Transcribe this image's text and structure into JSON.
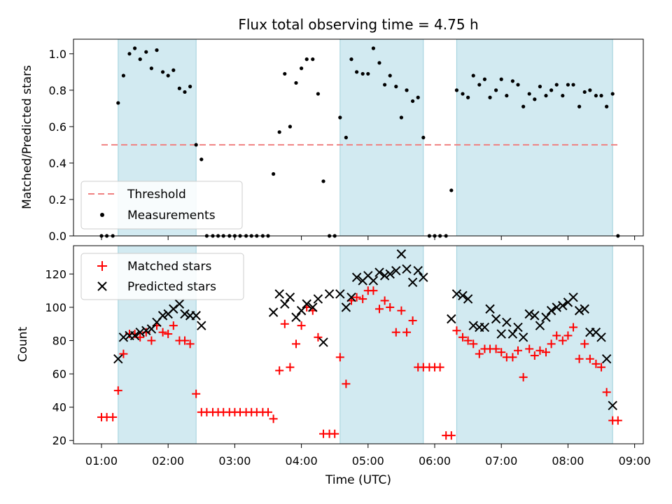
{
  "chart_data": [
    {
      "type": "scatter",
      "title": "Flux total observing time = 4.75 h",
      "xlabel": "",
      "ylabel": "Matched/Predicted stars",
      "ylim": [
        0,
        1.08
      ],
      "yticks": [
        "0.0",
        "0.2",
        "0.4",
        "0.6",
        "0.8",
        "1.0"
      ],
      "xlim": [
        0.58,
        9.13
      ],
      "legend_position": "lower-left",
      "threshold": {
        "name": "Threshold",
        "value": 0.5,
        "x_start": 1.0,
        "x_end": 8.75,
        "color": "#f08080",
        "style": "dashed"
      },
      "shaded_intervals": [
        [
          1.25,
          2.42
        ],
        [
          4.58,
          5.83
        ],
        [
          6.33,
          8.67
        ]
      ],
      "shade_color": "#add8e6",
      "series": [
        {
          "name": "Measurements",
          "color": "#000000",
          "marker": "dot",
          "x": [
            1.0,
            1.08,
            1.17,
            1.25,
            1.33,
            1.42,
            1.5,
            1.58,
            1.67,
            1.75,
            1.83,
            1.92,
            2.0,
            2.08,
            2.17,
            2.25,
            2.33,
            2.42,
            2.5,
            2.58,
            2.67,
            2.75,
            2.83,
            2.92,
            3.0,
            3.08,
            3.17,
            3.25,
            3.33,
            3.42,
            3.5,
            3.58,
            3.67,
            3.75,
            3.83,
            3.92,
            4.0,
            4.08,
            4.17,
            4.25,
            4.33,
            4.42,
            4.5,
            4.58,
            4.67,
            4.75,
            4.83,
            4.92,
            5.0,
            5.08,
            5.17,
            5.25,
            5.33,
            5.42,
            5.5,
            5.58,
            5.67,
            5.75,
            5.83,
            5.92,
            6.0,
            6.08,
            6.17,
            6.25,
            6.33,
            6.42,
            6.5,
            6.58,
            6.67,
            6.75,
            6.83,
            6.92,
            7.0,
            7.08,
            7.17,
            7.25,
            7.33,
            7.42,
            7.5,
            7.58,
            7.67,
            7.75,
            7.83,
            7.92,
            8.0,
            8.08,
            8.17,
            8.25,
            8.33,
            8.42,
            8.5,
            8.58,
            8.67,
            8.75
          ],
          "y": [
            0.0,
            0.0,
            0.0,
            0.73,
            0.88,
            1.0,
            1.03,
            0.97,
            1.01,
            0.92,
            1.02,
            0.9,
            0.88,
            0.91,
            0.81,
            0.79,
            0.82,
            0.5,
            0.42,
            0.0,
            0.0,
            0.0,
            0.0,
            0.0,
            0.0,
            0.0,
            0.0,
            0.0,
            0.0,
            0.0,
            0.0,
            0.34,
            0.57,
            0.89,
            0.6,
            0.84,
            0.92,
            0.97,
            0.97,
            0.78,
            0.3,
            0.0,
            0.0,
            0.65,
            0.54,
            0.97,
            0.9,
            0.89,
            0.89,
            1.03,
            0.95,
            0.83,
            0.88,
            0.82,
            0.65,
            0.8,
            0.74,
            0.76,
            0.54,
            0.0,
            0.0,
            0.0,
            0.0,
            0.25,
            0.8,
            0.78,
            0.76,
            0.88,
            0.83,
            0.86,
            0.76,
            0.8,
            0.86,
            0.77,
            0.85,
            0.83,
            0.71,
            0.78,
            0.75,
            0.82,
            0.77,
            0.8,
            0.83,
            0.77,
            0.83,
            0.83,
            0.71,
            0.79,
            0.8,
            0.77,
            0.77,
            0.71,
            0.78,
            0.0
          ]
        }
      ]
    },
    {
      "type": "scatter",
      "title": "",
      "xlabel": "Time (UTC)",
      "ylabel": "Count",
      "ylim": [
        18,
        137
      ],
      "yticks": [
        "20",
        "40",
        "60",
        "80",
        "100",
        "120"
      ],
      "xlim": [
        0.58,
        9.13
      ],
      "xticks": [
        "01:00",
        "02:00",
        "03:00",
        "04:00",
        "05:00",
        "06:00",
        "07:00",
        "08:00",
        "09:00"
      ],
      "legend_position": "upper-left",
      "shaded_intervals": [
        [
          1.25,
          2.42
        ],
        [
          4.58,
          5.83
        ],
        [
          6.33,
          8.67
        ]
      ],
      "shade_color": "#add8e6",
      "series": [
        {
          "name": "Matched stars",
          "color": "#ff0000",
          "marker": "plus",
          "x": [
            1.0,
            1.08,
            1.17,
            1.25,
            1.33,
            1.42,
            1.5,
            1.58,
            1.67,
            1.75,
            1.83,
            1.92,
            2.0,
            2.08,
            2.17,
            2.25,
            2.33,
            2.42,
            2.5,
            2.58,
            2.67,
            2.75,
            2.83,
            2.92,
            3.0,
            3.08,
            3.17,
            3.25,
            3.33,
            3.42,
            3.5,
            3.58,
            3.67,
            3.75,
            3.83,
            3.92,
            4.0,
            4.08,
            4.17,
            4.25,
            4.33,
            4.42,
            4.5,
            4.58,
            4.67,
            4.75,
            4.83,
            4.92,
            5.0,
            5.08,
            5.17,
            5.25,
            5.33,
            5.42,
            5.5,
            5.58,
            5.67,
            5.75,
            5.83,
            5.92,
            6.0,
            6.08,
            6.17,
            6.25,
            6.33,
            6.42,
            6.5,
            6.58,
            6.67,
            6.75,
            6.83,
            6.92,
            7.0,
            7.08,
            7.17,
            7.25,
            7.33,
            7.42,
            7.5,
            7.58,
            7.67,
            7.75,
            7.83,
            7.92,
            8.0,
            8.08,
            8.17,
            8.25,
            8.33,
            8.42,
            8.5,
            8.58,
            8.67,
            8.75
          ],
          "y": [
            34,
            34,
            34,
            50,
            72,
            84,
            84,
            82,
            85,
            80,
            89,
            85,
            84,
            89,
            80,
            80,
            78,
            48,
            37,
            37,
            37,
            37,
            37,
            37,
            37,
            37,
            37,
            37,
            37,
            37,
            37,
            33,
            62,
            90,
            64,
            78,
            89,
            100,
            98,
            82,
            24,
            24,
            24,
            70,
            54,
            104,
            106,
            105,
            110,
            110,
            99,
            104,
            100,
            85,
            98,
            85,
            92,
            64,
            64,
            64,
            64,
            64,
            23,
            23,
            86,
            82,
            80,
            78,
            72,
            75,
            75,
            75,
            73,
            70,
            70,
            74,
            58,
            75,
            71,
            74,
            73,
            78,
            83,
            80,
            83,
            88,
            69,
            78,
            69,
            66,
            64,
            49,
            32,
            32
          ]
        },
        {
          "name": "Predicted stars",
          "color": "#000000",
          "marker": "x",
          "x": [
            1.25,
            1.33,
            1.42,
            1.5,
            1.58,
            1.67,
            1.75,
            1.83,
            1.92,
            2.0,
            2.08,
            2.17,
            2.25,
            2.33,
            2.42,
            2.5,
            3.58,
            3.67,
            3.75,
            3.83,
            3.92,
            4.0,
            4.08,
            4.17,
            4.25,
            4.33,
            4.42,
            4.58,
            4.67,
            4.75,
            4.83,
            4.92,
            5.0,
            5.08,
            5.17,
            5.25,
            5.33,
            5.42,
            5.5,
            5.58,
            5.67,
            5.75,
            5.83,
            6.25,
            6.33,
            6.42,
            6.5,
            6.58,
            6.67,
            6.75,
            6.83,
            6.92,
            7.0,
            7.08,
            7.17,
            7.25,
            7.33,
            7.42,
            7.5,
            7.58,
            7.67,
            7.75,
            7.83,
            7.92,
            8.0,
            8.08,
            8.17,
            8.25,
            8.33,
            8.42,
            8.5,
            8.58,
            8.67
          ],
          "y": [
            69,
            82,
            83,
            83,
            85,
            86,
            87,
            91,
            95,
            96,
            99,
            102,
            96,
            95,
            95,
            89,
            97,
            108,
            102,
            106,
            94,
            98,
            102,
            100,
            105,
            79,
            108,
            108,
            100,
            106,
            118,
            116,
            119,
            116,
            121,
            119,
            120,
            122,
            132,
            123,
            115,
            122,
            118,
            93,
            108,
            107,
            105,
            89,
            88,
            88,
            99,
            93,
            84,
            91,
            84,
            88,
            82,
            96,
            95,
            89,
            94,
            98,
            100,
            101,
            103,
            106,
            98,
            99,
            85,
            85,
            82,
            69,
            41
          ]
        }
      ]
    }
  ]
}
